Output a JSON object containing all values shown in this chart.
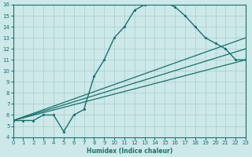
{
  "xlabel": "Humidex (Indice chaleur)",
  "xlim": [
    0,
    23
  ],
  "ylim": [
    4,
    16
  ],
  "xticks": [
    0,
    1,
    2,
    3,
    4,
    5,
    6,
    7,
    8,
    9,
    10,
    11,
    12,
    13,
    14,
    15,
    16,
    17,
    18,
    19,
    20,
    21,
    22,
    23
  ],
  "yticks": [
    4,
    5,
    6,
    7,
    8,
    9,
    10,
    11,
    12,
    13,
    14,
    15,
    16
  ],
  "bg_color": "#cce8e8",
  "line_color": "#1a7070",
  "grid_color": "#aacccc",
  "curve_x": [
    0,
    1,
    2,
    3,
    4,
    5,
    6,
    7,
    8,
    9,
    10,
    11,
    12,
    13,
    14,
    15,
    16,
    17,
    18,
    19,
    20,
    21,
    22,
    23
  ],
  "curve_y": [
    5.5,
    5.5,
    5.5,
    6.0,
    6.0,
    4.5,
    6.0,
    6.5,
    9.5,
    11.0,
    13.0,
    14.0,
    15.5,
    16.0,
    16.2,
    16.2,
    15.8,
    15.0,
    14.0,
    13.0,
    12.5,
    12.0,
    11.0,
    11.0
  ],
  "straight_lines": [
    {
      "x0": 0,
      "y0": 5.5,
      "x1": 23,
      "y1": 13.0
    },
    {
      "x0": 0,
      "y0": 5.5,
      "x1": 23,
      "y1": 12.0
    },
    {
      "x0": 0,
      "y0": 5.5,
      "x1": 23,
      "y1": 11.0
    }
  ]
}
